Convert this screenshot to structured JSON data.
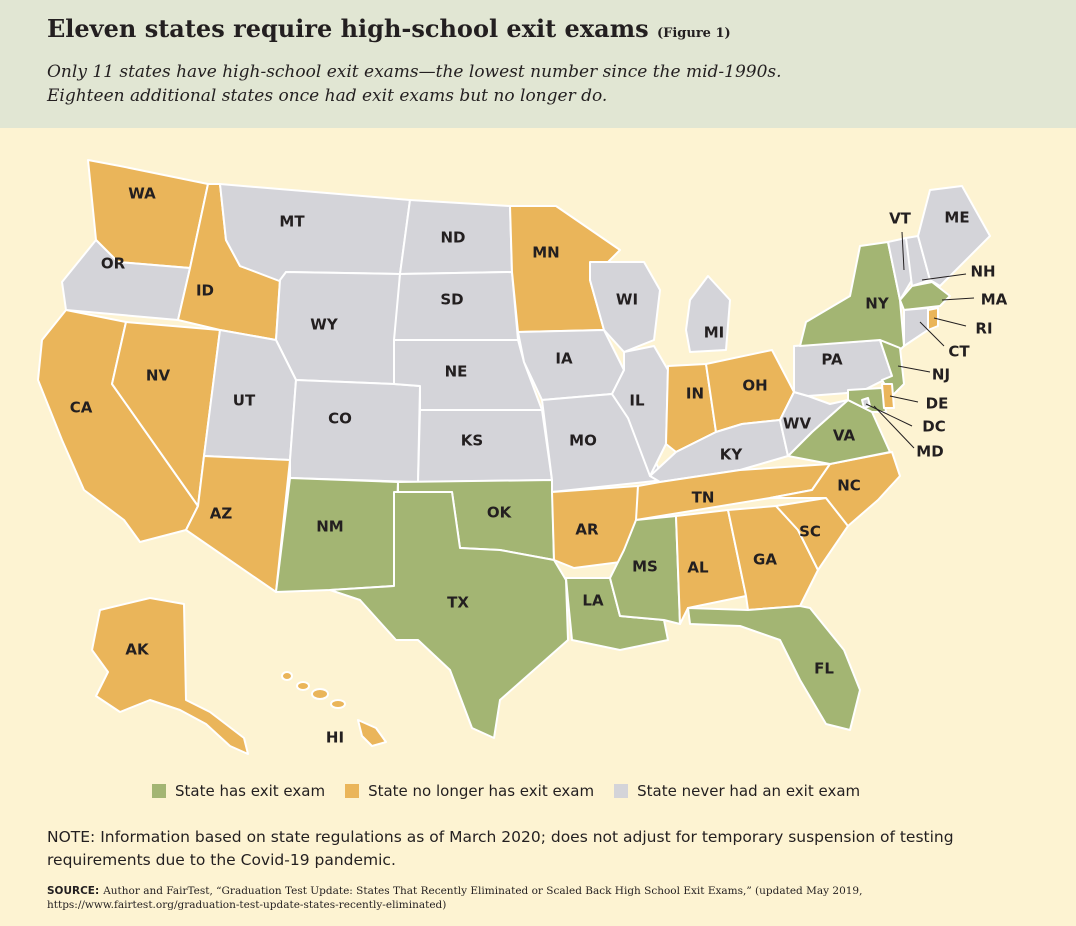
{
  "header": {
    "title": "Eleven states require high-school exit exams",
    "figure_label": "(Figure 1)",
    "subtitle_line1": "Only 11 states have high-school exit exams—the lowest number since the mid-1990s.",
    "subtitle_line2": "Eighteen additional states once had exit exams but no longer do."
  },
  "colors": {
    "exit_exam": "#a3b573",
    "no_longer": "#eab55a",
    "never": "#d4d4d9",
    "header_bg": "#e1e6d3",
    "page_bg": "#fdf3d2"
  },
  "states": {
    "WA": "no_longer",
    "OR": "never",
    "CA": "no_longer",
    "ID": "no_longer",
    "NV": "no_longer",
    "MT": "never",
    "WY": "never",
    "UT": "never",
    "AZ": "no_longer",
    "CO": "never",
    "NM": "exit_exam",
    "ND": "never",
    "SD": "never",
    "NE": "never",
    "KS": "never",
    "OK": "exit_exam",
    "TX": "exit_exam",
    "MN": "no_longer",
    "IA": "never",
    "MO": "never",
    "AR": "no_longer",
    "LA": "exit_exam",
    "WI": "never",
    "IL": "never",
    "MI": "never",
    "IN": "no_longer",
    "OH": "no_longer",
    "KY": "never",
    "TN": "no_longer",
    "MS": "exit_exam",
    "AL": "no_longer",
    "GA": "no_longer",
    "FL": "exit_exam",
    "SC": "no_longer",
    "NC": "no_longer",
    "VA": "exit_exam",
    "WV": "never",
    "PA": "never",
    "NY": "exit_exam",
    "NJ": "exit_exam",
    "DE": "no_longer",
    "MD": "exit_exam",
    "DC": "never",
    "CT": "never",
    "RI": "no_longer",
    "MA": "exit_exam",
    "VT": "never",
    "NH": "never",
    "ME": "never",
    "AK": "no_longer",
    "HI": "no_longer"
  },
  "legend": {
    "exit_exam": "State has exit exam",
    "no_longer": "State no longer has exit exam",
    "never": "State never had an exit exam"
  },
  "note": "NOTE: Information based on state regulations as of March 2020; does not adjust for temporary suspension of testing requirements due to the Covid-19 pandemic.",
  "source": {
    "label": "SOURCE:",
    "text": "Author and FairTest, “Graduation Test Update: States That Recently Eliminated or Scaled Back High School Exit Exams,” (updated May 2019, https://www.fairtest.org/graduation-test-update-states-recently-eliminated)"
  }
}
